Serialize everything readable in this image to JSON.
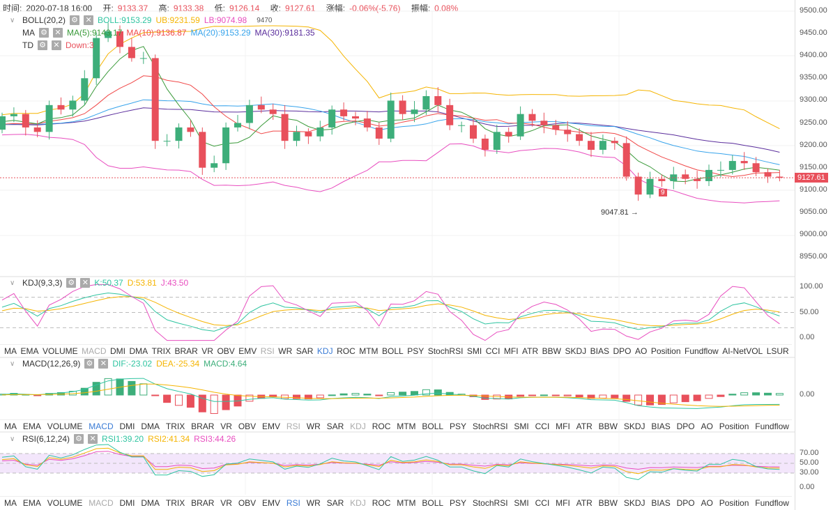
{
  "header": {
    "time_label": "时间:",
    "time": "2020-07-18 16:00",
    "open_label": "开:",
    "open": "9133.37",
    "high_label": "高:",
    "high": "9133.38",
    "low_label": "低:",
    "low": "9126.14",
    "close_label": "收:",
    "close": "9127.61",
    "change_label": "涨幅:",
    "change": "-0.06%(-5.76)",
    "amp_label": "振幅:",
    "amp": "0.08%"
  },
  "main": {
    "boll": {
      "name": "BOLL(20,2)",
      "boll": "BOLL:9153.29",
      "ub": "UB:9231.59",
      "lb": "LB:9074.98"
    },
    "ma": {
      "name": "MA",
      "ma5": "MA(5):9143.17",
      "ma10": "MA(10):9136.87",
      "ma20": "MA(20):9153.29",
      "ma30": "MA(30):9181.35"
    },
    "td": {
      "name": "TD",
      "down": "Down:3"
    },
    "high_marker": "9470",
    "low_marker": "9047.81 →",
    "td_badge": "9",
    "last_price": "9127.61",
    "y_ticks": [
      "9500.00",
      "9450.00",
      "9400.00",
      "9350.00",
      "9300.00",
      "9250.00",
      "9200.00",
      "9150.00",
      "9100.00",
      "9050.00",
      "9000.00",
      "8950.00"
    ],
    "closes": [
      9265,
      9270,
      9240,
      9230,
      9290,
      9280,
      9300,
      9350,
      9440,
      9455,
      9420,
      9395,
      9395,
      9210,
      9210,
      9240,
      9230,
      9150,
      9160,
      9240,
      9250,
      9290,
      9280,
      9270,
      9210,
      9230,
      9220,
      9240,
      9280,
      9265,
      9260,
      9240,
      9215,
      9300,
      9270,
      9280,
      9310,
      9290,
      9245,
      9245,
      9215,
      9190,
      9230,
      9220,
      9270,
      9255,
      9245,
      9235,
      9225,
      9210,
      9190,
      9210,
      9205,
      9130,
      9090,
      9125,
      9120,
      9135,
      9125,
      9120,
      9145,
      9145,
      9165,
      9160,
      9140,
      9130,
      9127.61
    ]
  },
  "kdj": {
    "name": "KDJ(9,3,3)",
    "k": "K:50.37",
    "d": "D:53.81",
    "j": "J:43.50",
    "y_ticks": [
      "100.00",
      "50.00",
      "0.00"
    ]
  },
  "macd": {
    "name": "MACD(12,26,9)",
    "dif": "DIF:-23.02",
    "dea": "DEA:-25.34",
    "macd": "MACD:4.64",
    "y_ticks": [
      "0.00"
    ]
  },
  "rsi": {
    "name": "RSI(6,12,24)",
    "rsi1": "RSI1:39.20",
    "rsi2": "RSI2:41.34",
    "rsi3": "RSI3:44.26",
    "y_ticks": [
      "70.00",
      "50.00",
      "30.00",
      "0.00"
    ]
  },
  "tabs_full": [
    "MA",
    "EMA",
    "VOLUME",
    "MACD",
    "DMI",
    "DMA",
    "TRIX",
    "BRAR",
    "VR",
    "OBV",
    "EMV",
    "RSI",
    "WR",
    "SAR",
    "KDJ",
    "ROC",
    "MTM",
    "BOLL",
    "PSY",
    "StochRSI",
    "SMI",
    "CCI",
    "MFI",
    "ATR",
    "BBW",
    "SKDJ",
    "BIAS",
    "DPO",
    "AO",
    "Position",
    "Fundflow",
    "AI-NetVOL",
    "LSUR"
  ],
  "tabs_short": [
    "MA",
    "EMA",
    "VOLUME",
    "MACD",
    "DMI",
    "DMA",
    "TRIX",
    "BRAR",
    "VR",
    "OBV",
    "EMV",
    "RSI",
    "WR",
    "SAR",
    "KDJ",
    "ROC",
    "MTM",
    "BOLL",
    "PSY",
    "StochRSI",
    "SMI",
    "CCI",
    "MFI",
    "ATR",
    "BBW",
    "SKDJ",
    "BIAS",
    "DPO",
    "AO",
    "Position",
    "Fundflow"
  ],
  "colors": {
    "up": "#3dae7a",
    "down": "#e8505b",
    "ma5": "#3a9a3a",
    "ma10": "#f04848",
    "ma20": "#36a3eb",
    "ma30": "#5a2d9c",
    "ub": "#f5b400",
    "lb": "#e84dbf",
    "boll": "#2ec4a0"
  }
}
